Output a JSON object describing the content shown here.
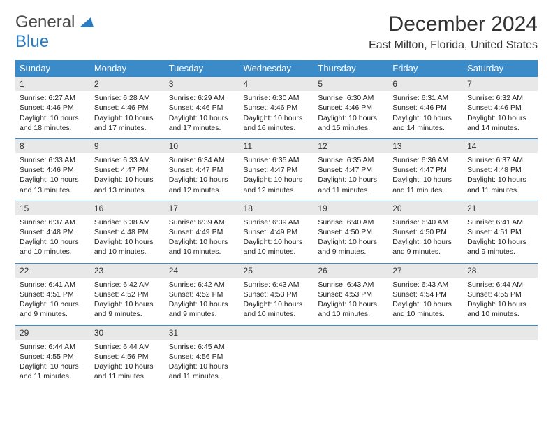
{
  "brand": {
    "word1": "General",
    "word2": "Blue"
  },
  "title": "December 2024",
  "location": "East Milton, Florida, United States",
  "colors": {
    "header_bg": "#3b8bc9",
    "header_text": "#ffffff",
    "date_bg": "#e8e8e8",
    "row_border": "#3b8bc9",
    "brand_gray": "#4a4a4a",
    "brand_blue": "#2d7cc1"
  },
  "day_headers": [
    "Sunday",
    "Monday",
    "Tuesday",
    "Wednesday",
    "Thursday",
    "Friday",
    "Saturday"
  ],
  "weeks": [
    [
      {
        "n": "1",
        "sr": "6:27 AM",
        "ss": "4:46 PM",
        "dl": "10 hours and 18 minutes."
      },
      {
        "n": "2",
        "sr": "6:28 AM",
        "ss": "4:46 PM",
        "dl": "10 hours and 17 minutes."
      },
      {
        "n": "3",
        "sr": "6:29 AM",
        "ss": "4:46 PM",
        "dl": "10 hours and 17 minutes."
      },
      {
        "n": "4",
        "sr": "6:30 AM",
        "ss": "4:46 PM",
        "dl": "10 hours and 16 minutes."
      },
      {
        "n": "5",
        "sr": "6:30 AM",
        "ss": "4:46 PM",
        "dl": "10 hours and 15 minutes."
      },
      {
        "n": "6",
        "sr": "6:31 AM",
        "ss": "4:46 PM",
        "dl": "10 hours and 14 minutes."
      },
      {
        "n": "7",
        "sr": "6:32 AM",
        "ss": "4:46 PM",
        "dl": "10 hours and 14 minutes."
      }
    ],
    [
      {
        "n": "8",
        "sr": "6:33 AM",
        "ss": "4:46 PM",
        "dl": "10 hours and 13 minutes."
      },
      {
        "n": "9",
        "sr": "6:33 AM",
        "ss": "4:47 PM",
        "dl": "10 hours and 13 minutes."
      },
      {
        "n": "10",
        "sr": "6:34 AM",
        "ss": "4:47 PM",
        "dl": "10 hours and 12 minutes."
      },
      {
        "n": "11",
        "sr": "6:35 AM",
        "ss": "4:47 PM",
        "dl": "10 hours and 12 minutes."
      },
      {
        "n": "12",
        "sr": "6:35 AM",
        "ss": "4:47 PM",
        "dl": "10 hours and 11 minutes."
      },
      {
        "n": "13",
        "sr": "6:36 AM",
        "ss": "4:47 PM",
        "dl": "10 hours and 11 minutes."
      },
      {
        "n": "14",
        "sr": "6:37 AM",
        "ss": "4:48 PM",
        "dl": "10 hours and 11 minutes."
      }
    ],
    [
      {
        "n": "15",
        "sr": "6:37 AM",
        "ss": "4:48 PM",
        "dl": "10 hours and 10 minutes."
      },
      {
        "n": "16",
        "sr": "6:38 AM",
        "ss": "4:48 PM",
        "dl": "10 hours and 10 minutes."
      },
      {
        "n": "17",
        "sr": "6:39 AM",
        "ss": "4:49 PM",
        "dl": "10 hours and 10 minutes."
      },
      {
        "n": "18",
        "sr": "6:39 AM",
        "ss": "4:49 PM",
        "dl": "10 hours and 10 minutes."
      },
      {
        "n": "19",
        "sr": "6:40 AM",
        "ss": "4:50 PM",
        "dl": "10 hours and 9 minutes."
      },
      {
        "n": "20",
        "sr": "6:40 AM",
        "ss": "4:50 PM",
        "dl": "10 hours and 9 minutes."
      },
      {
        "n": "21",
        "sr": "6:41 AM",
        "ss": "4:51 PM",
        "dl": "10 hours and 9 minutes."
      }
    ],
    [
      {
        "n": "22",
        "sr": "6:41 AM",
        "ss": "4:51 PM",
        "dl": "10 hours and 9 minutes."
      },
      {
        "n": "23",
        "sr": "6:42 AM",
        "ss": "4:52 PM",
        "dl": "10 hours and 9 minutes."
      },
      {
        "n": "24",
        "sr": "6:42 AM",
        "ss": "4:52 PM",
        "dl": "10 hours and 9 minutes."
      },
      {
        "n": "25",
        "sr": "6:43 AM",
        "ss": "4:53 PM",
        "dl": "10 hours and 10 minutes."
      },
      {
        "n": "26",
        "sr": "6:43 AM",
        "ss": "4:53 PM",
        "dl": "10 hours and 10 minutes."
      },
      {
        "n": "27",
        "sr": "6:43 AM",
        "ss": "4:54 PM",
        "dl": "10 hours and 10 minutes."
      },
      {
        "n": "28",
        "sr": "6:44 AM",
        "ss": "4:55 PM",
        "dl": "10 hours and 10 minutes."
      }
    ],
    [
      {
        "n": "29",
        "sr": "6:44 AM",
        "ss": "4:55 PM",
        "dl": "10 hours and 11 minutes."
      },
      {
        "n": "30",
        "sr": "6:44 AM",
        "ss": "4:56 PM",
        "dl": "10 hours and 11 minutes."
      },
      {
        "n": "31",
        "sr": "6:45 AM",
        "ss": "4:56 PM",
        "dl": "10 hours and 11 minutes."
      },
      null,
      null,
      null,
      null
    ]
  ],
  "labels": {
    "sunrise": "Sunrise:",
    "sunset": "Sunset:",
    "daylight": "Daylight:"
  }
}
